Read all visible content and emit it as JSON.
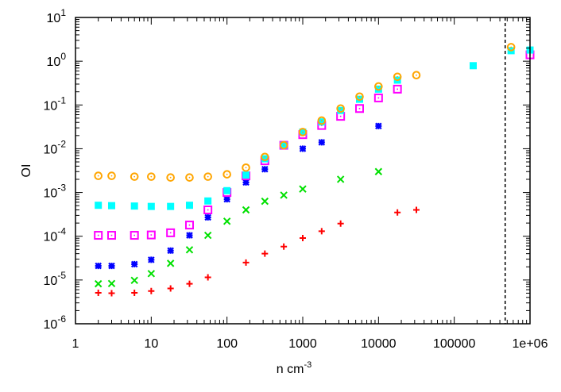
{
  "chart_data": {
    "type": "scatter",
    "title": "",
    "xlabel": "n cm",
    "xlabel_sup": "-3",
    "ylabel": "OI",
    "xscale": "log",
    "yscale": "log",
    "xlim": [
      1,
      1000000
    ],
    "ylim": [
      1e-06,
      10
    ],
    "grid": false,
    "x_ticks": [
      {
        "v": 1,
        "label": "1"
      },
      {
        "v": 10,
        "label": "10"
      },
      {
        "v": 100,
        "label": "100"
      },
      {
        "v": 1000,
        "label": "1000"
      },
      {
        "v": 10000,
        "label": "10000"
      },
      {
        "v": 100000,
        "label": "100000"
      },
      {
        "v": 1000000,
        "label": "1e+06"
      }
    ],
    "y_ticks": [
      {
        "v": -6,
        "base": "10",
        "exp": "-6"
      },
      {
        "v": -5,
        "base": "10",
        "exp": "-5"
      },
      {
        "v": -4,
        "base": "10",
        "exp": "-4"
      },
      {
        "v": -3,
        "base": "10",
        "exp": "-3"
      },
      {
        "v": -2,
        "base": "10",
        "exp": "-2"
      },
      {
        "v": -1,
        "base": "10",
        "exp": "-1"
      },
      {
        "v": 0,
        "base": "10",
        "exp": "0"
      },
      {
        "v": 1,
        "base": "10",
        "exp": "1"
      }
    ],
    "vline_x": 470000,
    "series": [
      {
        "marker": "plus",
        "color": "#ff0000",
        "points": [
          [
            2,
            5.1e-06
          ],
          [
            3,
            5e-06
          ],
          [
            6,
            5.1e-06
          ],
          [
            10,
            5.6e-06
          ],
          [
            18,
            6.4e-06
          ],
          [
            32,
            8.2e-06
          ],
          [
            56,
            1.15e-05
          ],
          [
            178,
            2.5e-05
          ],
          [
            316,
            4e-05
          ],
          [
            562,
            5.8e-05
          ],
          [
            1000,
            9.1e-05
          ],
          [
            1778,
            0.00013
          ],
          [
            3162,
            0.000195
          ],
          [
            17783,
            0.00035
          ],
          [
            31623,
            0.0004
          ]
        ]
      },
      {
        "marker": "cross",
        "color": "#00e000",
        "points": [
          [
            2,
            8.2e-06
          ],
          [
            3,
            8.3e-06
          ],
          [
            6,
            9.8e-06
          ],
          [
            10,
            1.4e-05
          ],
          [
            18,
            2.4e-05
          ],
          [
            32,
            4.9e-05
          ],
          [
            56,
            0.000105
          ],
          [
            100,
            0.00022
          ],
          [
            178,
            0.0004
          ],
          [
            316,
            0.00063
          ],
          [
            562,
            0.00087
          ],
          [
            1000,
            0.0012
          ],
          [
            3162,
            0.002
          ],
          [
            10000,
            0.003
          ]
        ]
      },
      {
        "marker": "star",
        "color": "#0000ff",
        "points": [
          [
            2,
            2.1e-05
          ],
          [
            3,
            2.1e-05
          ],
          [
            6,
            2.3e-05
          ],
          [
            10,
            2.9e-05
          ],
          [
            18,
            4.7e-05
          ],
          [
            32,
            0.000105
          ],
          [
            56,
            0.00027
          ],
          [
            100,
            0.0007
          ],
          [
            178,
            0.0017
          ],
          [
            316,
            0.0034
          ],
          [
            1000,
            0.01
          ],
          [
            1778,
            0.014
          ],
          [
            10000,
            0.033
          ]
        ]
      },
      {
        "marker": "dotsquare",
        "color": "#ff00ff",
        "points": [
          [
            2,
            0.000105
          ],
          [
            3,
            0.000105
          ],
          [
            6,
            0.000105
          ],
          [
            10,
            0.000107
          ],
          [
            18,
            0.00012
          ],
          [
            32,
            0.00018
          ],
          [
            56,
            0.0004
          ],
          [
            100,
            0.001
          ],
          [
            178,
            0.0024
          ],
          [
            316,
            0.0053
          ],
          [
            562,
            0.012
          ],
          [
            1000,
            0.021
          ],
          [
            1778,
            0.034
          ],
          [
            3162,
            0.055
          ],
          [
            5623,
            0.083
          ],
          [
            10000,
            0.145
          ],
          [
            17783,
            0.23
          ],
          [
            1000000,
            1.4
          ]
        ]
      },
      {
        "marker": "filledsquare",
        "color": "#00ffff",
        "points": [
          [
            2,
            0.00051
          ],
          [
            3,
            0.0005
          ],
          [
            6,
            0.00049
          ],
          [
            10,
            0.00048
          ],
          [
            18,
            0.00048
          ],
          [
            32,
            0.00051
          ],
          [
            56,
            0.00064
          ],
          [
            100,
            0.0011
          ],
          [
            178,
            0.0025
          ],
          [
            316,
            0.0059
          ],
          [
            562,
            0.012
          ],
          [
            1000,
            0.024
          ],
          [
            1778,
            0.041
          ],
          [
            3162,
            0.075
          ],
          [
            5623,
            0.135
          ],
          [
            10000,
            0.23
          ],
          [
            17783,
            0.37
          ],
          [
            177828,
            0.79
          ],
          [
            562341,
            1.74
          ],
          [
            1000000,
            1.8
          ]
        ]
      },
      {
        "marker": "dotcircle",
        "color": "#ffa500",
        "points": [
          [
            2,
            0.0024
          ],
          [
            3,
            0.0024
          ],
          [
            6,
            0.0023
          ],
          [
            10,
            0.0023
          ],
          [
            18,
            0.0022
          ],
          [
            32,
            0.0022
          ],
          [
            56,
            0.0023
          ],
          [
            100,
            0.0026
          ],
          [
            178,
            0.0037
          ],
          [
            316,
            0.0065
          ],
          [
            562,
            0.012
          ],
          [
            1000,
            0.024
          ],
          [
            1778,
            0.044
          ],
          [
            3162,
            0.083
          ],
          [
            5623,
            0.155
          ],
          [
            10000,
            0.265
          ],
          [
            17783,
            0.44
          ],
          [
            31623,
            0.48
          ],
          [
            562341,
            2.1
          ]
        ]
      }
    ]
  }
}
